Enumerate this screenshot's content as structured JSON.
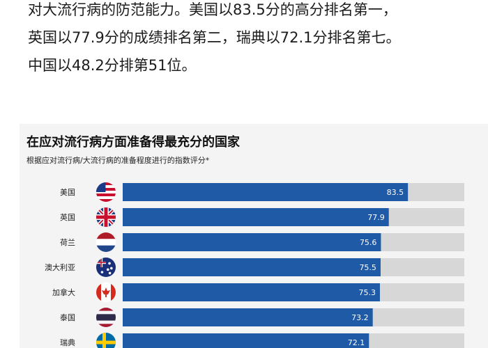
{
  "article": {
    "lines": [
      "对大流行病的防范能力。美国以83.5分的高分排名第一，",
      "英国以77.9分的成绩排名第二，瑞典以72.1分排名第七。",
      "中国以48.2分排第51位。"
    ]
  },
  "colors": {
    "bar": "#1f5aa6",
    "track": "#d7d7d7",
    "card": "#f4f4f4"
  },
  "chart_data": {
    "type": "bar",
    "orientation": "horizontal",
    "title": "在应对流行病方面准备得最充分的国家",
    "subtitle": "根据应对流行病/大流行病的准备程度进行的指数评分*",
    "categories": [
      "美国",
      "英国",
      "荷兰",
      "澳大利亚",
      "加拿大",
      "泰国",
      "瑞典"
    ],
    "flags": [
      "us-flag-icon",
      "uk-flag-icon",
      "netherlands-flag-icon",
      "australia-flag-icon",
      "canada-flag-icon",
      "thailand-flag-icon",
      "sweden-flag-icon"
    ],
    "values": [
      83.5,
      77.9,
      75.6,
      75.5,
      75.3,
      73.2,
      72.1
    ],
    "xlim": [
      0,
      100
    ],
    "grid": false,
    "legend": "none"
  }
}
